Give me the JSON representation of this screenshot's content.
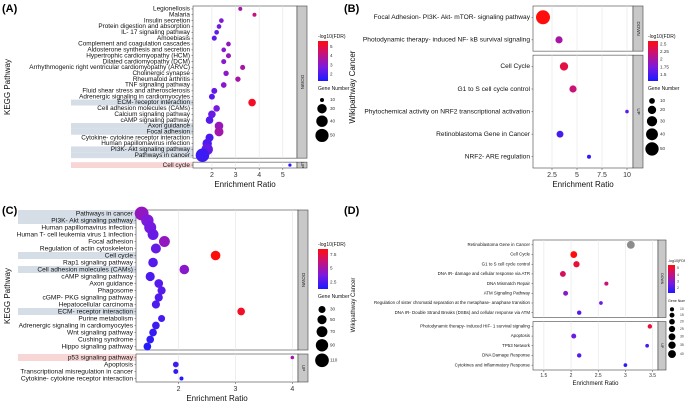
{
  "panel_labels": [
    "(A)",
    "(B)",
    "(C)",
    "(D)"
  ],
  "legend_labels": {
    "color": "-log10(FDR)",
    "size": "Gene Number"
  },
  "chart_data": [
    {
      "id": "A",
      "type": "scatter",
      "xlabel": "Enrichment Ratio",
      "ylabel": "KEGG Pathway",
      "xlim": [
        1.2,
        5.6
      ],
      "xticks": [
        2,
        3,
        4,
        5
      ],
      "color_ticks": [
        5,
        4,
        3,
        2
      ],
      "color_range": [
        1.3,
        5.6
      ],
      "size_ticks": [
        10,
        30,
        40,
        50
      ],
      "size_range": [
        10,
        55
      ],
      "groups": [
        {
          "name": "DOWN",
          "rows": [
            {
              "label": "Legionellosis",
              "x": 3.2,
              "fdr": 3.5,
              "genes": 10,
              "hl": false
            },
            {
              "label": "Malaria",
              "x": 3.8,
              "fdr": 4.2,
              "genes": 10,
              "hl": false
            },
            {
              "label": "Insulin secretion",
              "x": 2.4,
              "fdr": 2.8,
              "genes": 12,
              "hl": false
            },
            {
              "label": "Protein digestion and absorption",
              "x": 2.3,
              "fdr": 2.6,
              "genes": 12,
              "hl": false
            },
            {
              "label": "IL- 17 signaling pathway",
              "x": 2.2,
              "fdr": 2.4,
              "genes": 12,
              "hl": false
            },
            {
              "label": "Amoebiasis",
              "x": 2.1,
              "fdr": 2.3,
              "genes": 13,
              "hl": false
            },
            {
              "label": "Complement and coagulation cascades",
              "x": 2.7,
              "fdr": 3.2,
              "genes": 12,
              "hl": false
            },
            {
              "label": "Aldosterone synthesis and secretion",
              "x": 2.5,
              "fdr": 3.0,
              "genes": 12,
              "hl": false
            },
            {
              "label": "Hypertrophic cardiomyopathy (HCM)",
              "x": 2.7,
              "fdr": 3.3,
              "genes": 13,
              "hl": false
            },
            {
              "label": "Dilated cardiomyopathy (DCM)",
              "x": 2.5,
              "fdr": 3.0,
              "genes": 13,
              "hl": false
            },
            {
              "label": "Arrhythmogenic right ventricular cardiomyopathy (ARVC)",
              "x": 3.3,
              "fdr": 3.6,
              "genes": 13,
              "hl": false
            },
            {
              "label": "Cholinergic synapse",
              "x": 2.6,
              "fdr": 3.1,
              "genes": 14,
              "hl": false
            },
            {
              "label": "Rheumatoid arthritis",
              "x": 3.1,
              "fdr": 3.6,
              "genes": 14,
              "hl": false
            },
            {
              "label": "TNF signaling pathway",
              "x": 2.5,
              "fdr": 3.0,
              "genes": 15,
              "hl": false
            },
            {
              "label": "Fluid shear stress and atherosclerosis",
              "x": 2.1,
              "fdr": 2.4,
              "genes": 16,
              "hl": false
            },
            {
              "label": "Adrenergic signaling in cardiomyocytes",
              "x": 2.0,
              "fdr": 2.2,
              "genes": 16,
              "hl": false
            },
            {
              "label": "ECM- receptor interaction",
              "x": 3.7,
              "fdr": 5.3,
              "genes": 22,
              "hl": true
            },
            {
              "label": "Cell adhesion molecules (CAMs)",
              "x": 2.2,
              "fdr": 2.7,
              "genes": 18,
              "hl": false
            },
            {
              "label": "Calcium signaling pathway",
              "x": 2.0,
              "fdr": 2.5,
              "genes": 22,
              "hl": false
            },
            {
              "label": "cAMP signaling pathway",
              "x": 1.9,
              "fdr": 2.2,
              "genes": 22,
              "hl": false
            },
            {
              "label": "Axon guidance",
              "x": 2.3,
              "fdr": 3.3,
              "genes": 26,
              "hl": true
            },
            {
              "label": "Focal adhesion",
              "x": 2.3,
              "fdr": 3.5,
              "genes": 28,
              "hl": true
            },
            {
              "label": "Cytokine- cytokine receptor interaction",
              "x": 1.9,
              "fdr": 2.0,
              "genes": 24,
              "hl": false
            },
            {
              "label": "Human papillomavirus infection",
              "x": 1.8,
              "fdr": 2.1,
              "genes": 30,
              "hl": false
            },
            {
              "label": "PI3K- Akt signaling pathway",
              "x": 1.8,
              "fdr": 2.4,
              "genes": 40,
              "hl": true
            },
            {
              "label": "Pathways in cancer",
              "x": 1.6,
              "fdr": 1.8,
              "genes": 52,
              "hl": true
            }
          ]
        },
        {
          "name": "UP",
          "rows": [
            {
              "label": "Cell cycle",
              "x": 5.3,
              "fdr": 1.5,
              "genes": 8,
              "hl": true,
              "pink": true
            }
          ]
        }
      ]
    },
    {
      "id": "B",
      "type": "scatter",
      "xlabel": "Enrichment Ratio",
      "ylabel": "Wikipathway Cancer",
      "xlim": [
        0.6,
        10.6
      ],
      "xticks": [
        2.5,
        5.0,
        7.5,
        10.0
      ],
      "color_ticks": [
        2.5,
        2.25,
        2.0,
        1.75,
        1.5
      ],
      "color_range": [
        1.3,
        2.6
      ],
      "size_ticks": [
        10,
        20,
        30,
        40,
        50
      ],
      "size_range": [
        5,
        55
      ],
      "groups": [
        {
          "name": "DOWN",
          "rows": [
            {
              "label": "Focal Adhesion- PI3K- Akt- mTOR- signaling pathway",
              "x": 1.6,
              "fdr": 2.6,
              "genes": 55,
              "hl": false
            },
            {
              "label": "Photodynamic therapy- induced NF- kB survival signaling",
              "x": 3.2,
              "fdr": 2.0,
              "genes": 15,
              "hl": false
            }
          ]
        },
        {
          "name": "UP",
          "rows": [
            {
              "label": "Cell Cycle",
              "x": 3.7,
              "fdr": 2.4,
              "genes": 20,
              "hl": false
            },
            {
              "label": "G1 to S cell cycle control",
              "x": 4.6,
              "fdr": 2.2,
              "genes": 15,
              "hl": false
            },
            {
              "label": "Phytochemical activity on NRF2 transcriptional activation",
              "x": 10.0,
              "fdr": 1.6,
              "genes": 4,
              "hl": false
            },
            {
              "label": "Retinoblastoma Gene in Cancer",
              "x": 3.3,
              "fdr": 1.5,
              "genes": 14,
              "hl": false
            },
            {
              "label": "NRF2- ARE regulation",
              "x": 6.2,
              "fdr": 1.4,
              "genes": 5,
              "hl": false
            }
          ]
        }
      ]
    },
    {
      "id": "C",
      "type": "scatter",
      "xlabel": "Enrichment Ratio",
      "ylabel": "KEGG Pathway",
      "xlim": [
        1.25,
        4.1
      ],
      "xticks": [
        2,
        3,
        4
      ],
      "color_ticks": [
        7.5,
        5.0,
        2.5
      ],
      "color_range": [
        1.3,
        8.5
      ],
      "size_ticks": [
        30,
        50,
        70,
        90,
        110
      ],
      "size_range": [
        10,
        115
      ],
      "groups": [
        {
          "name": "DOWN",
          "rows": [
            {
              "label": "Pathways in cancer",
              "x": 1.35,
              "fdr": 4.5,
              "genes": 112,
              "hl": true
            },
            {
              "label": "PI3K- Akt signaling pathway",
              "x": 1.45,
              "fdr": 3.8,
              "genes": 90,
              "hl": true
            },
            {
              "label": "Human papillomavirus infection",
              "x": 1.5,
              "fdr": 3.6,
              "genes": 85,
              "hl": false
            },
            {
              "label": "Human T- cell leukemia virus 1 infection",
              "x": 1.55,
              "fdr": 3.3,
              "genes": 70,
              "hl": false
            },
            {
              "label": "Focal adhesion",
              "x": 1.75,
              "fdr": 4.5,
              "genes": 70,
              "hl": false
            },
            {
              "label": "Regulation of actin cytoskeleton",
              "x": 1.6,
              "fdr": 3.2,
              "genes": 60,
              "hl": false
            },
            {
              "label": "Cell cycle",
              "x": 2.65,
              "fdr": 8.5,
              "genes": 55,
              "hl": true
            },
            {
              "label": "Rap1 signaling pathway",
              "x": 1.55,
              "fdr": 2.8,
              "genes": 55,
              "hl": false
            },
            {
              "label": "Cell adhesion molecules (CAMs)",
              "x": 2.1,
              "fdr": 4.2,
              "genes": 55,
              "hl": true
            },
            {
              "label": "cAMP signaling pathway",
              "x": 1.5,
              "fdr": 2.5,
              "genes": 50,
              "hl": false
            },
            {
              "label": "Axon guidance",
              "x": 1.65,
              "fdr": 2.8,
              "genes": 45,
              "hl": false
            },
            {
              "label": "Phagosome",
              "x": 1.7,
              "fdr": 2.8,
              "genes": 40,
              "hl": false
            },
            {
              "label": "cGMP- PKG signaling pathway",
              "x": 1.65,
              "fdr": 2.6,
              "genes": 40,
              "hl": false
            },
            {
              "label": "Hepatocellular carcinoma",
              "x": 1.6,
              "fdr": 2.6,
              "genes": 40,
              "hl": false
            },
            {
              "label": "ECM- receptor interaction",
              "x": 3.1,
              "fdr": 8.0,
              "genes": 35,
              "hl": true
            },
            {
              "label": "Purine metabolism",
              "x": 1.7,
              "fdr": 2.4,
              "genes": 30,
              "hl": false
            },
            {
              "label": "Adrenergic signaling in cardiomyocytes",
              "x": 1.6,
              "fdr": 2.2,
              "genes": 35,
              "hl": false
            },
            {
              "label": "Wnt signaling pathway",
              "x": 1.55,
              "fdr": 2.0,
              "genes": 35,
              "hl": false
            },
            {
              "label": "Cushing syndrome",
              "x": 1.5,
              "fdr": 1.8,
              "genes": 35,
              "hl": false
            },
            {
              "label": "Hippo signaling pathway",
              "x": 1.45,
              "fdr": 1.6,
              "genes": 35,
              "hl": false
            }
          ]
        },
        {
          "name": "UP",
          "rows": [
            {
              "label": "p53 signaling pathway",
              "x": 4.0,
              "fdr": 5.0,
              "genes": 8,
              "hl": true,
              "pink": true
            },
            {
              "label": "Apoptosis",
              "x": 1.95,
              "fdr": 2.2,
              "genes": 20,
              "hl": false
            },
            {
              "label": "Transcriptional misregulation in cancer",
              "x": 1.95,
              "fdr": 1.9,
              "genes": 15,
              "hl": false
            },
            {
              "label": "Cytokine- cytokine receptor interaction",
              "x": 2.05,
              "fdr": 1.5,
              "genes": 10,
              "hl": false
            }
          ]
        }
      ]
    },
    {
      "id": "D",
      "type": "scatter",
      "xlabel": "Enrichment Ratio",
      "ylabel": "Wikipathway Cancer",
      "xlim": [
        1.3,
        3.6
      ],
      "xticks": [
        1.5,
        2.0,
        2.5,
        3.0,
        3.5
      ],
      "color_ticks": [
        5,
        4,
        3,
        2
      ],
      "color_range": [
        1.3,
        5.5
      ],
      "size_ticks": [
        10,
        15,
        20,
        25,
        30,
        35,
        40
      ],
      "size_range": [
        5,
        42
      ],
      "groups": [
        {
          "name": "DOWN",
          "rows": [
            {
              "label": "Retinoblastoma Gene in Cancer",
              "x": 3.1,
              "fdr": null,
              "genes": 40,
              "hl": false
            },
            {
              "label": "Cell Cycle",
              "x": 2.05,
              "fdr": 5.5,
              "genes": 30,
              "hl": false
            },
            {
              "label": "G1 to S cell cycle control",
              "x": 2.1,
              "fdr": 5.0,
              "genes": 25,
              "hl": false
            },
            {
              "label": "DNA IR- damage and cellular response via ATR",
              "x": 1.85,
              "fdr": 4.5,
              "genes": 22,
              "hl": false
            },
            {
              "label": "DNA Mismatch Repair",
              "x": 2.65,
              "fdr": 4.2,
              "genes": 10,
              "hl": false
            },
            {
              "label": "ATM Signaling Pathway",
              "x": 1.9,
              "fdr": 3.0,
              "genes": 15,
              "hl": false
            },
            {
              "label": "Regulation of sister chromatid separation at the metaphase- anaphase transition",
              "x": 2.55,
              "fdr": 2.5,
              "genes": 8,
              "hl": false
            },
            {
              "label": "DNA IR- Double Strand Breaks (DSBs) and cellular response via ATM",
              "x": 2.15,
              "fdr": 2.2,
              "genes": 12,
              "hl": false
            }
          ]
        },
        {
          "name": "UP",
          "rows": [
            {
              "label": "Photodynamic therapy- induced HIF- 1 survival signaling",
              "x": 3.45,
              "fdr": 5.0,
              "genes": 12,
              "hl": false
            },
            {
              "label": "Apoptosis",
              "x": 2.05,
              "fdr": 2.5,
              "genes": 15,
              "hl": false
            },
            {
              "label": "TP53 Network",
              "x": 3.4,
              "fdr": 2.0,
              "genes": 8,
              "hl": false
            },
            {
              "label": "DNA Damage Response",
              "x": 2.15,
              "fdr": 2.2,
              "genes": 12,
              "hl": false
            },
            {
              "label": "Cytokines and Inflammatory Response",
              "x": 3.0,
              "fdr": 1.5,
              "genes": 8,
              "hl": false
            }
          ]
        }
      ]
    }
  ]
}
